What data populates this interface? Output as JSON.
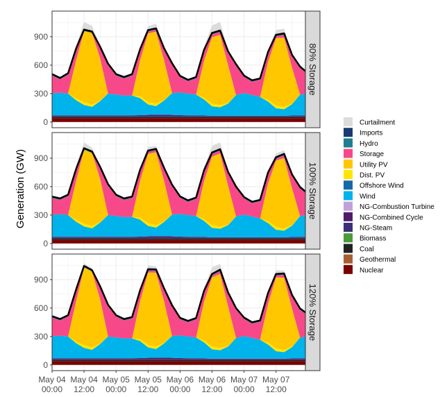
{
  "chart_data": {
    "type": "area",
    "stacked": true,
    "ylabel": "Generation (GW)",
    "xlabel": "",
    "ylim": [
      -60,
      1170
    ],
    "yticks": [
      0,
      300,
      600,
      900
    ],
    "xlim_hours": [
      0,
      95
    ],
    "x_tick_hours": [
      0,
      12,
      24,
      36,
      48,
      60,
      72,
      84
    ],
    "x_tick_labels": [
      [
        "May 04",
        "00:00"
      ],
      [
        "May 04",
        "12:00"
      ],
      [
        "May 05",
        "00:00"
      ],
      [
        "May 05",
        "12:00"
      ],
      [
        "May 06",
        "00:00"
      ],
      [
        "May 06",
        "12:00"
      ],
      [
        "May 07",
        "00:00"
      ],
      [
        "May 07",
        "12:00"
      ]
    ],
    "grid": true,
    "legend_position": "right",
    "legend": [
      {
        "name": "Curtailment",
        "color": "#dcdcdc"
      },
      {
        "name": "Imports",
        "color": "#1a3a73"
      },
      {
        "name": "Hydro",
        "color": "#1f7f8f"
      },
      {
        "name": "Storage",
        "color": "#f7498a"
      },
      {
        "name": "Utility PV",
        "color": "#ffc700"
      },
      {
        "name": "Dist. PV",
        "color": "#ffe600"
      },
      {
        "name": "Offshore Wind",
        "color": "#1569a8"
      },
      {
        "name": "Wind",
        "color": "#00b3ea"
      },
      {
        "name": "NG-Combustion Turbine",
        "color": "#c2a0dc"
      },
      {
        "name": "NG-Combined Cycle",
        "color": "#4f1c6b"
      },
      {
        "name": "NG-Steam",
        "color": "#3a2f7a"
      },
      {
        "name": "Biomass",
        "color": "#4d9a3a"
      },
      {
        "name": "Coal",
        "color": "#222222"
      },
      {
        "name": "Geothermal",
        "color": "#a55f33"
      },
      {
        "name": "Nuclear",
        "color": "#7a0000"
      }
    ],
    "hours": [
      0,
      3,
      6,
      9,
      12,
      15,
      18,
      21,
      24,
      27,
      30,
      33,
      36,
      39,
      42,
      45,
      48,
      51,
      54,
      57,
      60,
      63,
      66,
      69,
      72,
      75,
      78,
      81,
      84,
      87,
      90,
      93,
      96
    ],
    "common_series": {
      "Nuclear": [
        40,
        40,
        40,
        40,
        40,
        40,
        40,
        40,
        40,
        40,
        40,
        40,
        40,
        40,
        40,
        40,
        40,
        40,
        40,
        40,
        40,
        40,
        40,
        40,
        40,
        40,
        40,
        40,
        40,
        40,
        40,
        40,
        40
      ],
      "Coal": [
        15,
        15,
        15,
        15,
        15,
        15,
        15,
        15,
        15,
        15,
        15,
        15,
        15,
        15,
        15,
        15,
        15,
        15,
        15,
        15,
        15,
        15,
        15,
        15,
        15,
        15,
        15,
        15,
        15,
        15,
        15,
        15,
        15
      ],
      "NG-Steam": [
        5,
        5,
        5,
        5,
        5,
        5,
        5,
        5,
        5,
        5,
        5,
        5,
        5,
        5,
        5,
        5,
        5,
        5,
        5,
        5,
        5,
        5,
        5,
        5,
        5,
        5,
        5,
        5,
        5,
        5,
        5,
        5,
        5
      ],
      "NG-Combined Cycle": [
        10,
        10,
        10,
        10,
        10,
        10,
        10,
        10,
        10,
        10,
        10,
        12,
        15,
        18,
        18,
        15,
        12,
        10,
        10,
        8,
        5,
        5,
        5,
        5,
        5,
        5,
        5,
        5,
        5,
        5,
        8,
        10,
        10
      ],
      "Wind": [
        230,
        240,
        230,
        160,
        110,
        90,
        150,
        230,
        220,
        210,
        210,
        180,
        110,
        90,
        150,
        230,
        240,
        230,
        220,
        170,
        100,
        90,
        130,
        220,
        240,
        220,
        200,
        150,
        80,
        70,
        120,
        220,
        230
      ],
      "Dist. PV": [
        0,
        0,
        0,
        20,
        30,
        25,
        5,
        0,
        0,
        0,
        0,
        20,
        30,
        25,
        5,
        0,
        0,
        0,
        0,
        20,
        30,
        25,
        5,
        0,
        0,
        0,
        0,
        20,
        30,
        25,
        5,
        0,
        0
      ],
      "Hydro": [
        15,
        15,
        15,
        15,
        15,
        15,
        15,
        15,
        15,
        15,
        15,
        15,
        15,
        15,
        15,
        15,
        15,
        15,
        15,
        15,
        15,
        15,
        15,
        15,
        15,
        15,
        15,
        15,
        15,
        15,
        15,
        15,
        15
      ]
    },
    "facets": [
      {
        "label": "80% Storage",
        "Utility PV": [
          0,
          0,
          0,
          400,
          750,
          755,
          450,
          0,
          0,
          0,
          0,
          380,
          720,
          760,
          420,
          0,
          0,
          0,
          0,
          390,
          700,
          740,
          400,
          0,
          0,
          0,
          0,
          400,
          710,
          730,
          380,
          0,
          0
        ],
        "Storage": [
          190,
          140,
          200,
          110,
          0,
          0,
          105,
          300,
          200,
          180,
          210,
          100,
          20,
          20,
          110,
          300,
          160,
          130,
          170,
          100,
          30,
          30,
          130,
          310,
          170,
          140,
          180,
          90,
          20,
          30,
          120,
          280,
          200
        ],
        "Curtailment": [
          0,
          0,
          0,
          30,
          80,
          60,
          10,
          0,
          0,
          0,
          0,
          20,
          40,
          50,
          10,
          0,
          0,
          0,
          0,
          30,
          80,
          90,
          20,
          0,
          0,
          0,
          0,
          20,
          50,
          50,
          10,
          0,
          0
        ]
      },
      {
        "label": "100% Storage",
        "Utility PV": [
          0,
          0,
          0,
          410,
          780,
          770,
          460,
          0,
          0,
          0,
          0,
          390,
          730,
          770,
          430,
          0,
          0,
          0,
          0,
          400,
          720,
          770,
          410,
          0,
          0,
          0,
          0,
          400,
          700,
          740,
          390,
          0,
          0
        ],
        "Storage": [
          180,
          150,
          200,
          110,
          0,
          0,
          110,
          310,
          210,
          180,
          200,
          100,
          20,
          20,
          120,
          300,
          170,
          140,
          180,
          100,
          30,
          30,
          130,
          300,
          170,
          140,
          180,
          100,
          20,
          30,
          130,
          290,
          210
        ],
        "Curtailment": [
          0,
          0,
          0,
          30,
          60,
          40,
          10,
          0,
          0,
          0,
          0,
          20,
          40,
          30,
          10,
          0,
          0,
          0,
          0,
          30,
          70,
          70,
          20,
          0,
          0,
          0,
          0,
          20,
          40,
          40,
          10,
          0,
          0
        ]
      },
      {
        "label": "120% Storage",
        "Utility PV": [
          0,
          0,
          0,
          420,
          820,
          800,
          470,
          0,
          0,
          0,
          0,
          400,
          760,
          780,
          440,
          0,
          0,
          0,
          0,
          410,
          730,
          780,
          420,
          0,
          0,
          0,
          0,
          410,
          750,
          760,
          400,
          0,
          0
        ],
        "Storage": [
          200,
          160,
          210,
          110,
          0,
          0,
          120,
          320,
          220,
          190,
          210,
          100,
          20,
          20,
          120,
          310,
          170,
          150,
          190,
          100,
          20,
          30,
          130,
          300,
          180,
          150,
          190,
          100,
          20,
          30,
          130,
          290,
          220
        ],
        "Curtailment": [
          0,
          0,
          0,
          20,
          30,
          20,
          5,
          0,
          0,
          0,
          0,
          20,
          40,
          30,
          10,
          0,
          0,
          0,
          0,
          30,
          70,
          60,
          20,
          0,
          0,
          0,
          0,
          20,
          40,
          30,
          10,
          0,
          0
        ]
      }
    ],
    "total_line_color": "#000000"
  }
}
